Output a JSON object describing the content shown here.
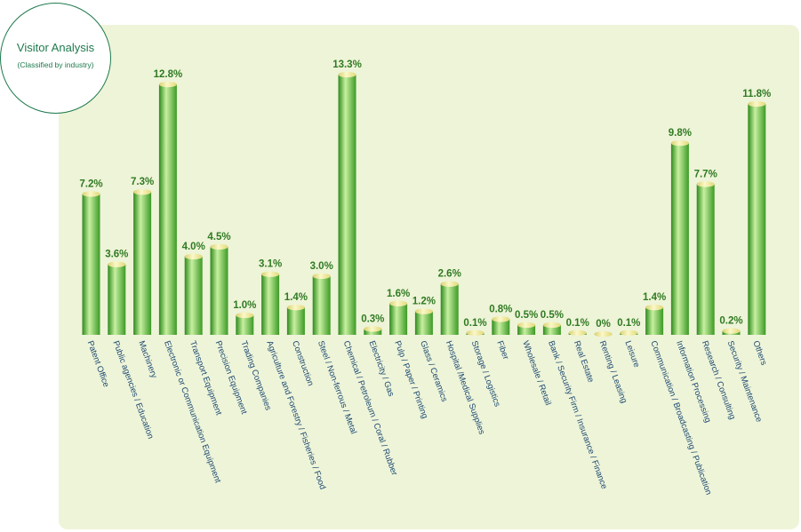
{
  "header": {
    "title": "Visitor Analysis",
    "subtitle": "(Classified by industry)"
  },
  "chart_data": {
    "type": "bar",
    "title": "",
    "xlabel": "",
    "ylabel": "",
    "ylim": [
      0,
      13.3
    ],
    "grid": false,
    "legend": "none",
    "value_suffix": "%",
    "colors": {
      "bar_dark": "#2c8a1c",
      "bar_light": "#c8f0a0",
      "bar_top": "#f5f0a8",
      "value_text": "#2f7a22",
      "label_text": "#1d4a73",
      "panel": "#eef4d8"
    },
    "categories": [
      "Patent Office",
      "Public agencies / Education",
      "Machinery",
      "Electronic or Communication Equipment",
      "Transport Equipment",
      "Precision Equipment",
      "Trading Companies",
      "Agriculture and Forestry / Fisheries / Food",
      "Construction",
      "Steel / Non-ferrous / Metal",
      "Chemical / Petroleum / Coral / Rubber",
      "Electricity / Gas",
      "Pulp / Paper / Printing",
      "Glass / Ceramics",
      "Hospital /Medical Supplies",
      "Storage / Logistics",
      "Fiber",
      "Wholesale / Retail",
      "Bank / Security Firm / Insurance / Finance",
      "Real Estate",
      "Renting / Leasing",
      "Leisure",
      "Communication / Broadcasting / Publication",
      "Information Processing",
      "Research / Consulting",
      "Security / Maintenance",
      "Others"
    ],
    "values": [
      7.2,
      3.6,
      7.3,
      12.8,
      4.0,
      4.5,
      1.0,
      3.1,
      1.4,
      3.0,
      13.3,
      0.3,
      1.6,
      1.2,
      2.6,
      0.1,
      0.8,
      0.5,
      0.5,
      0.1,
      0,
      0.1,
      1.4,
      9.8,
      7.7,
      0.2,
      11.8
    ],
    "value_labels": [
      "7.2%",
      "3.6%",
      "7.3%",
      "12.8%",
      "4.0%",
      "4.5%",
      "1.0%",
      "3.1%",
      "1.4%",
      "3.0%",
      "13.3%",
      "0.3%",
      "1.6%",
      "1.2%",
      "2.6%",
      "0.1%",
      "0.8%",
      "0.5%",
      "0.5%",
      "0.1%",
      "0%",
      "0.1%",
      "1.4%",
      "9.8%",
      "7.7%",
      "0.2%",
      "11.8%"
    ]
  }
}
